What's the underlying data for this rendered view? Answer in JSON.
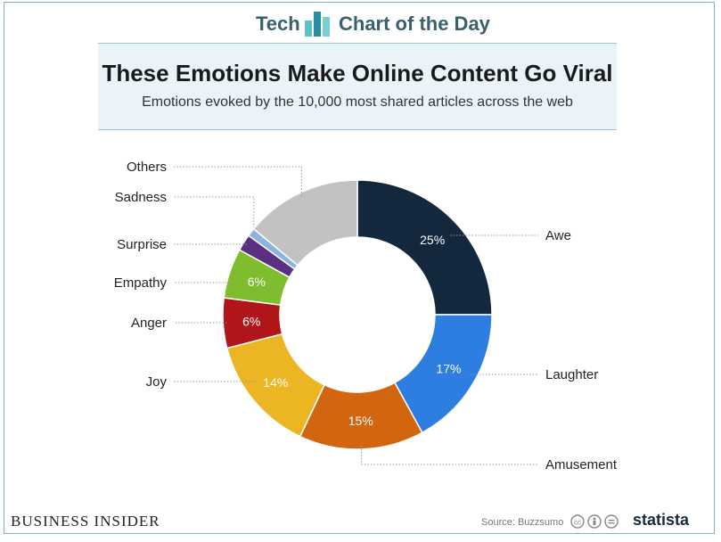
{
  "header": {
    "brand_left": "Tech",
    "brand_right": "Chart of the Day"
  },
  "title": "These Emotions Make Online Content Go Viral",
  "subtitle": "Emotions evoked by the 10,000 most shared articles across the web",
  "footer": {
    "publisher": "BUSINESS INSIDER",
    "source": "Source: Buzzsumo",
    "statista": "statista"
  },
  "chart_data": {
    "type": "pie",
    "donut": true,
    "categories": [
      "Awe",
      "Laughter",
      "Amusement",
      "Joy",
      "Anger",
      "Empathy",
      "Surprise",
      "Sadness",
      "Others"
    ],
    "values": [
      25,
      17,
      15,
      14,
      6,
      6,
      2,
      1,
      14
    ],
    "data_labels": [
      "25%",
      "17%",
      "15%",
      "14%",
      "6%",
      "6%",
      "",
      "",
      ""
    ],
    "colors": [
      "#13273d",
      "#2e7de0",
      "#d2650f",
      "#ebb523",
      "#b0151a",
      "#7fbc2e",
      "#5a3182",
      "#8ab3e0",
      "#c2c2c2"
    ]
  }
}
